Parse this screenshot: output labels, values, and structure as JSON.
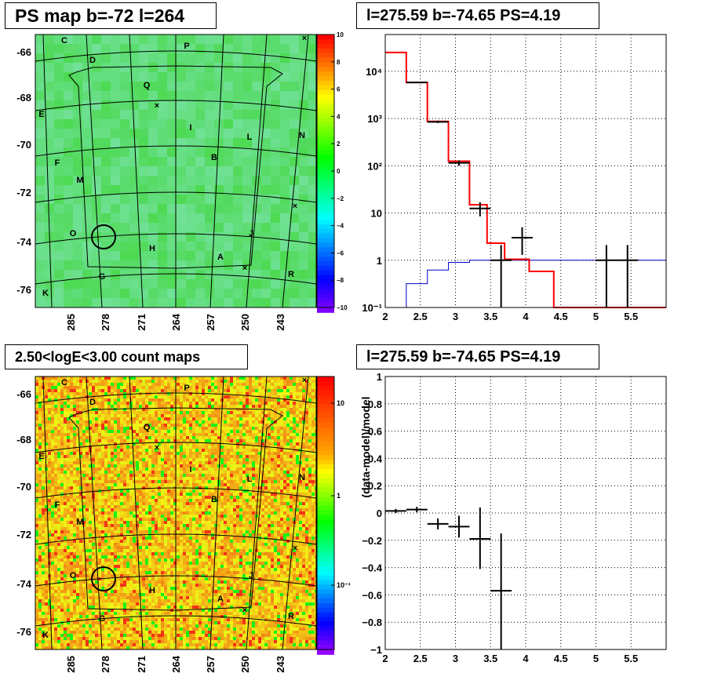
{
  "colors": {
    "model": "#ff0000",
    "background_model": "#0000cc",
    "data": "#000000",
    "grid": "#000000",
    "map_green": "#3ee04a"
  },
  "panels": {
    "ps_map": {
      "title": "PS map b=-72 l=264",
      "ylabels": [
        "-66",
        "-68",
        "-70",
        "-72",
        "-74",
        "-76"
      ],
      "xlabels": [
        "285",
        "278",
        "271",
        "264",
        "257",
        "250",
        "243"
      ],
      "colorbar_labels": [
        "10",
        "8",
        "6",
        "4",
        "2",
        "0",
        "−2",
        "−4",
        "−6",
        "−8",
        "−10"
      ],
      "region_labels": [
        "C",
        "D",
        "P",
        "Q",
        "E",
        "I",
        "L",
        "N",
        "F",
        "B",
        "M",
        "O",
        "J",
        "H",
        "A",
        "G",
        "R",
        "K"
      ]
    },
    "count_map": {
      "title": "2.50<logE<3.00 count maps",
      "ylabels": [
        "-66",
        "-68",
        "-70",
        "-72",
        "-74",
        "-76"
      ],
      "xlabels": [
        "285",
        "278",
        "271",
        "264",
        "257",
        "250",
        "243"
      ],
      "colorbar_labels": [
        "10",
        "1",
        "10⁻¹"
      ],
      "region_labels": [
        "C",
        "D",
        "P",
        "Q",
        "E",
        "I",
        "L",
        "N",
        "F",
        "B",
        "M",
        "O",
        "J",
        "H",
        "A",
        "G",
        "R",
        "K"
      ]
    }
  },
  "chart_data": [
    {
      "type": "line",
      "title": "l=275.59 b=-74.65 PS=4.19",
      "xlabel": "",
      "ylabel": "",
      "xlim": [
        2,
        6
      ],
      "ylim": [
        0.1,
        60000
      ],
      "yscale": "log",
      "xticks": [
        "2",
        "2.5",
        "3",
        "3.5",
        "4",
        "4.5",
        "5",
        "5.5"
      ],
      "yticks": [
        "10⁻¹",
        "1",
        "10",
        "10²",
        "10³",
        "10⁴"
      ],
      "grid": true,
      "model_hist": {
        "edges": [
          2,
          2.3,
          2.6,
          2.9,
          3.2,
          3.45,
          3.7,
          4.05,
          4.4,
          6
        ],
        "values": [
          25000,
          5800,
          870,
          125,
          15,
          2.3,
          1.05,
          0.58,
          0.1
        ]
      },
      "background_hist": {
        "edges": [
          2.3,
          2.6,
          2.9,
          3.2,
          3.45,
          3.7,
          4.05,
          4.4,
          6
        ],
        "values": [
          0.32,
          0.62,
          0.9,
          1.0,
          1.0,
          1.0,
          1.0,
          1.0
        ]
      },
      "data_points": [
        {
          "x": 2.45,
          "y": 5800,
          "xlo": 2.3,
          "xhi": 2.6,
          "ylo": 5600,
          "yhi": 6000
        },
        {
          "x": 2.75,
          "y": 850,
          "xlo": 2.6,
          "xhi": 2.9,
          "ylo": 800,
          "yhi": 900
        },
        {
          "x": 3.05,
          "y": 115,
          "xlo": 2.9,
          "xhi": 3.2,
          "ylo": 100,
          "yhi": 130
        },
        {
          "x": 3.35,
          "y": 12.5,
          "xlo": 3.2,
          "xhi": 3.5,
          "ylo": 8.5,
          "yhi": 17
        },
        {
          "x": 3.65,
          "y": 1.0,
          "xlo": 3.5,
          "xhi": 3.8,
          "ylo": 0.1,
          "yhi": 2.1
        },
        {
          "x": 3.95,
          "y": 3.0,
          "xlo": 3.8,
          "xhi": 4.1,
          "ylo": 1.3,
          "yhi": 5.0
        },
        {
          "x": 5.15,
          "y": 1.0,
          "xlo": 5.0,
          "xhi": 5.3,
          "ylo": 0.1,
          "yhi": 2.1
        },
        {
          "x": 5.45,
          "y": 1.0,
          "xlo": 5.3,
          "xhi": 5.6,
          "ylo": 0.1,
          "yhi": 2.1
        }
      ]
    },
    {
      "type": "scatter",
      "title": "l=275.59 b=-74.65 PS=4.19",
      "xlabel": "",
      "ylabel": "(data-model)/model",
      "xlim": [
        2,
        6
      ],
      "ylim": [
        -1,
        1
      ],
      "xticks": [
        "2",
        "2.5",
        "3",
        "3.5",
        "4",
        "4.5",
        "5",
        "5.5"
      ],
      "yticks": [
        "−1",
        "−0.8",
        "−0.6",
        "−0.4",
        "−0.2",
        "0",
        "0.2",
        "0.4",
        "0.6",
        "0.8",
        "1"
      ],
      "grid": true,
      "data_points": [
        {
          "x": 2.15,
          "y": 0.015,
          "xlo": 2.0,
          "xhi": 2.3,
          "ylo": 0.0,
          "yhi": 0.03
        },
        {
          "x": 2.45,
          "y": 0.025,
          "xlo": 2.3,
          "xhi": 2.6,
          "ylo": 0.005,
          "yhi": 0.045
        },
        {
          "x": 2.75,
          "y": -0.08,
          "xlo": 2.6,
          "xhi": 2.9,
          "ylo": -0.12,
          "yhi": -0.04
        },
        {
          "x": 3.05,
          "y": -0.1,
          "xlo": 2.9,
          "xhi": 3.2,
          "ylo": -0.18,
          "yhi": -0.02
        },
        {
          "x": 3.35,
          "y": -0.19,
          "xlo": 3.2,
          "xhi": 3.5,
          "ylo": -0.41,
          "yhi": 0.04
        },
        {
          "x": 3.65,
          "y": -0.57,
          "xlo": 3.5,
          "xhi": 3.8,
          "ylo": -1.0,
          "yhi": -0.15
        }
      ]
    }
  ]
}
